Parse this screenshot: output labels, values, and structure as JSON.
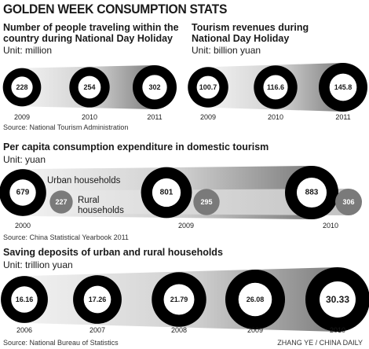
{
  "title": "GOLDEN WEEK CONSUMPTION STATS",
  "credit": "ZHANG YE / CHINA DAILY",
  "chart_data": [
    {
      "type": "bubble",
      "title": "Number of people traveling within the country during National Day Holiday",
      "title_lines": [
        "Number of people traveling within the",
        "country during National Day Holiday"
      ],
      "unit": "Unit: million",
      "source": "Source: National Tourism Administration",
      "categories": [
        "2009",
        "2010",
        "2011"
      ],
      "values": [
        228,
        254,
        302
      ],
      "value_labels": [
        "228",
        "254",
        "302"
      ]
    },
    {
      "type": "bubble",
      "title": "Tourism revenues during National Day Holiday",
      "title_lines": [
        "Tourism revenues during",
        "National Day Holiday"
      ],
      "unit": "Unit: billion yuan",
      "categories": [
        "2009",
        "2010",
        "2011"
      ],
      "values": [
        100.7,
        116.6,
        145.8
      ],
      "value_labels": [
        "100.7",
        "116.6",
        "145.8"
      ]
    },
    {
      "type": "bubble",
      "title": "Per capita consumption expenditure in domestic tourism",
      "unit": "Unit: yuan",
      "source": "Source: China Statistical Yearbook 2011",
      "categories": [
        "2000",
        "2009",
        "2010"
      ],
      "series": [
        {
          "name": "Urban households",
          "values": [
            679,
            801,
            883
          ],
          "value_labels": [
            "679",
            "801",
            "883"
          ]
        },
        {
          "name": "Rural households",
          "name_lines": [
            "Rural",
            "households"
          ],
          "values": [
            227,
            295,
            306
          ],
          "value_labels": [
            "227",
            "295",
            "306"
          ]
        }
      ]
    },
    {
      "type": "bubble",
      "title": "Saving deposits of urban and rural households",
      "unit": "Unit: trillion yuan",
      "source": "Source: National Bureau of Statistics",
      "categories": [
        "2006",
        "2007",
        "2008",
        "2009",
        "2010"
      ],
      "values": [
        16.16,
        17.26,
        21.79,
        26.08,
        30.33
      ],
      "value_labels": [
        "16.16",
        "17.26",
        "21.79",
        "26.08",
        "30.33"
      ]
    }
  ],
  "colors": {
    "ring": "#000000",
    "inner": "#ffffff",
    "band_light": "#ececec",
    "band_dark": "#8a8a8a",
    "rural_bubble": "#7a7a7a",
    "rural_band": "#cfcfcf"
  }
}
